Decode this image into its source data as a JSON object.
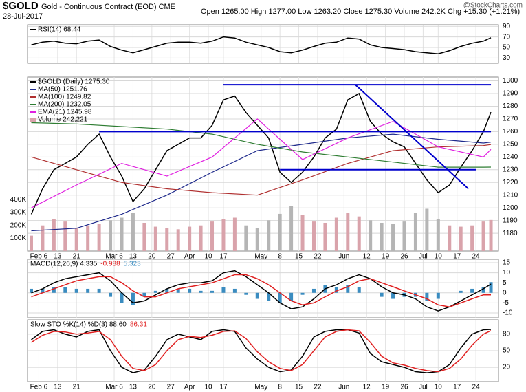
{
  "header": {
    "symbol": "$GOLD",
    "name": "Gold - Continuous Contract (EOD) CME",
    "date": "28-Jul-2017",
    "quote": "Open 1265.00   High 1277.00   Low 1263.20   Close 1275.30   Volume 242.2K   Chg +15.30 (+1.21%)",
    "watermark": "@StockCharts.com"
  },
  "chart_data": [
    {
      "type": "line",
      "legend_layout": "column",
      "x": [
        1,
        4,
        7,
        10,
        13,
        16,
        19,
        22,
        25,
        28,
        31,
        34,
        37,
        40,
        43,
        46,
        49,
        52,
        55,
        58,
        61,
        64,
        67,
        70,
        73,
        76,
        79,
        82,
        85,
        88,
        91,
        94,
        97,
        100,
        103,
        106,
        109,
        112,
        115,
        118,
        121,
        123
      ],
      "xlim": [
        0,
        125
      ],
      "ylim": [
        20,
        93
      ],
      "yticks": [
        90,
        70,
        50,
        30
      ],
      "series": [
        {
          "name": "RSI(14) 68.44",
          "color": "#000000",
          "values": [
            55,
            60,
            62,
            58,
            57,
            62,
            64,
            52,
            45,
            40,
            46,
            52,
            58,
            60,
            60,
            58,
            62,
            70,
            68,
            60,
            55,
            50,
            42,
            40,
            45,
            52,
            58,
            60,
            68,
            66,
            55,
            50,
            48,
            46,
            42,
            40,
            38,
            44,
            52,
            58,
            62,
            68.44
          ]
        }
      ]
    },
    {
      "type": "line",
      "legend_layout": "column",
      "x": [
        1,
        4,
        7,
        10,
        13,
        16,
        19,
        22,
        25,
        28,
        31,
        34,
        37,
        40,
        43,
        46,
        49,
        52,
        55,
        58,
        61,
        64,
        67,
        70,
        73,
        76,
        79,
        82,
        85,
        88,
        91,
        94,
        97,
        100,
        103,
        106,
        109,
        112,
        115,
        118,
        121,
        123
      ],
      "xlim": [
        0,
        125
      ],
      "ylim": [
        1166,
        1303
      ],
      "yticks": [
        1180,
        1190,
        1200,
        1210,
        1220,
        1230,
        1240,
        1250,
        1260,
        1270,
        1280,
        1290,
        1300
      ],
      "y2lim": [
        0,
        1357
      ],
      "y2ticks": [
        {
          "value": 100,
          "label": "100K"
        },
        {
          "value": 200,
          "label": "200K"
        },
        {
          "value": 300,
          "label": "300K"
        },
        {
          "value": 400,
          "label": "400K"
        }
      ],
      "xticks": [
        {
          "value": 3,
          "label": "Feb 6"
        },
        {
          "value": 8,
          "label": "13"
        },
        {
          "value": 13,
          "label": "21"
        },
        {
          "value": 23,
          "label": "Mar 6"
        },
        {
          "value": 28,
          "label": "13"
        },
        {
          "value": 33,
          "label": "20"
        },
        {
          "value": 38,
          "label": "27"
        },
        {
          "value": 43,
          "label": "Apr"
        },
        {
          "value": 48,
          "label": "10"
        },
        {
          "value": 52,
          "label": "17"
        },
        {
          "value": 62,
          "label": "May"
        },
        {
          "value": 67,
          "label": "8"
        },
        {
          "value": 72,
          "label": "15"
        },
        {
          "value": 77,
          "label": "22"
        },
        {
          "value": 84,
          "label": "Jun"
        },
        {
          "value": 90,
          "label": "12"
        },
        {
          "value": 95,
          "label": "19"
        },
        {
          "value": 100,
          "label": "26"
        },
        {
          "value": 105,
          "label": "Jul"
        },
        {
          "value": 109,
          "label": "10"
        },
        {
          "value": 114,
          "label": "17"
        },
        {
          "value": 119,
          "label": "24"
        }
      ],
      "trendline_color": "#0000cc",
      "trendlines": [
        {
          "x": [
            52,
            123
          ],
          "y": [
            1297,
            1297
          ]
        },
        {
          "x": [
            19,
            123
          ],
          "y": [
            1260,
            1260
          ]
        },
        {
          "x": [
            67,
            119
          ],
          "y": [
            1230,
            1230
          ]
        },
        {
          "x": [
            87,
            117
          ],
          "y": [
            1297,
            1215
          ]
        }
      ],
      "series": [
        {
          "name": "$GOLD (Daily) 1275.30",
          "color": "#000000",
          "values": [
            1195,
            1215,
            1230,
            1235,
            1240,
            1250,
            1258,
            1240,
            1225,
            1205,
            1215,
            1230,
            1245,
            1250,
            1255,
            1255,
            1265,
            1285,
            1288,
            1275,
            1265,
            1255,
            1228,
            1220,
            1228,
            1240,
            1255,
            1262,
            1285,
            1290,
            1268,
            1258,
            1252,
            1248,
            1235,
            1222,
            1212,
            1218,
            1232,
            1245,
            1260,
            1275.3
          ]
        },
        {
          "name": "MA(50) 1251.76",
          "color": "#1f2a8c",
          "x": [
            1,
            13,
            25,
            37,
            49,
            61,
            73,
            85,
            97,
            109,
            121,
            123
          ],
          "values": [
            1182,
            1184,
            1195,
            1210,
            1228,
            1245,
            1250,
            1255,
            1258,
            1254,
            1251,
            1251.76
          ]
        },
        {
          "name": "MA(100) 1249.82",
          "color": "#b03030",
          "x": [
            1,
            13,
            25,
            37,
            49,
            61,
            73,
            85,
            97,
            109,
            121,
            123
          ],
          "values": [
            1240,
            1230,
            1220,
            1215,
            1212,
            1210,
            1222,
            1235,
            1245,
            1248,
            1249,
            1249.82
          ]
        },
        {
          "name": "MA(200) 1232.05",
          "color": "#2e7d32",
          "x": [
            1,
            13,
            25,
            37,
            49,
            61,
            73,
            85,
            97,
            109,
            121,
            123
          ],
          "values": [
            1267,
            1266,
            1264,
            1262,
            1258,
            1250,
            1244,
            1240,
            1236,
            1232,
            1232,
            1232.05
          ]
        },
        {
          "name": "EMA(21) 1245.98",
          "color": "#e020e0",
          "x": [
            1,
            13,
            25,
            37,
            49,
            61,
            73,
            85,
            97,
            109,
            121,
            123
          ],
          "values": [
            1200,
            1218,
            1235,
            1225,
            1240,
            1270,
            1238,
            1255,
            1268,
            1248,
            1240,
            1245.98
          ]
        },
        {
          "name": "Volume 242,221",
          "type": "bar",
          "axis": "y2",
          "color": "#d9a3ab",
          "down_color": "#b5b5b5",
          "values": [
            120,
            200,
            250,
            230,
            180,
            200,
            210,
            240,
            260,
            300,
            220,
            190,
            180,
            170,
            190,
            200,
            230,
            250,
            260,
            200,
            180,
            240,
            290,
            350,
            280,
            230,
            220,
            260,
            300,
            270,
            240,
            220,
            210,
            230,
            300,
            330,
            250,
            200,
            190,
            200,
            230,
            242.221
          ]
        }
      ]
    },
    {
      "type": "line",
      "legend_layout": "row",
      "x": [
        1,
        4,
        7,
        10,
        13,
        16,
        19,
        22,
        25,
        28,
        31,
        34,
        37,
        40,
        43,
        46,
        49,
        52,
        55,
        58,
        61,
        64,
        67,
        70,
        73,
        76,
        79,
        82,
        85,
        88,
        91,
        94,
        97,
        100,
        103,
        106,
        109,
        112,
        115,
        118,
        121,
        123
      ],
      "xlim": [
        0,
        125
      ],
      "ylim": [
        -12.4,
        16.7
      ],
      "yticks": [
        15,
        10,
        5,
        0,
        -5,
        -10
      ],
      "series": [
        {
          "name": "5.323",
          "type": "bar",
          "color": "#3a8cc0",
          "values": [
            2,
            2,
            3,
            3,
            2,
            2,
            2,
            -2,
            -5,
            -6,
            -2,
            1,
            2,
            2,
            2,
            1,
            1,
            3,
            2,
            -1,
            -3,
            -4,
            -5,
            -4,
            -1,
            2,
            4,
            3,
            4,
            3,
            0,
            -2,
            -3,
            -2,
            -2,
            -4,
            -3,
            0,
            1,
            2,
            3,
            5.323
          ]
        },
        {
          "name": "MACD(12,26,9) 4.335",
          "color": "#000000",
          "values": [
            0,
            2,
            5,
            7,
            8,
            9,
            10,
            6,
            0,
            -5,
            -4,
            -1,
            2,
            4,
            5,
            5,
            6,
            10,
            11,
            8,
            4,
            0,
            -5,
            -8,
            -7,
            -3,
            2,
            4,
            7,
            9,
            7,
            3,
            0,
            -1,
            -3,
            -7,
            -9,
            -7,
            -4,
            -1,
            2,
            4.335
          ]
        },
        {
          "name": "-0.988",
          "color": "#e02020",
          "values": [
            -2,
            0,
            2,
            4,
            6,
            7,
            8,
            8,
            5,
            1,
            -2,
            -2,
            0,
            2,
            3,
            4,
            5,
            7,
            9,
            9,
            7,
            4,
            0,
            -4,
            -6,
            -5,
            -2,
            1,
            3,
            6,
            7,
            5,
            3,
            1,
            -1,
            -3,
            -6,
            -7,
            -5,
            -3,
            -1,
            -0.988
          ]
        }
      ]
    },
    {
      "type": "line",
      "legend_layout": "row",
      "x": [
        1,
        4,
        7,
        10,
        13,
        16,
        19,
        22,
        25,
        28,
        31,
        34,
        37,
        40,
        43,
        46,
        49,
        52,
        55,
        58,
        61,
        64,
        67,
        70,
        73,
        76,
        79,
        82,
        85,
        88,
        91,
        94,
        97,
        100,
        103,
        106,
        109,
        112,
        115,
        118,
        121,
        123
      ],
      "xlim": [
        0,
        125
      ],
      "ylim": [
        -6,
        106
      ],
      "yticks": [
        80,
        50,
        20
      ],
      "xticks": [
        {
          "value": 3,
          "label": "Feb 6"
        },
        {
          "value": 8,
          "label": "13"
        },
        {
          "value": 13,
          "label": "21"
        },
        {
          "value": 23,
          "label": "Mar 6"
        },
        {
          "value": 28,
          "label": "13"
        },
        {
          "value": 33,
          "label": "20"
        },
        {
          "value": 38,
          "label": "27"
        },
        {
          "value": 43,
          "label": "Apr"
        },
        {
          "value": 48,
          "label": "10"
        },
        {
          "value": 52,
          "label": "17"
        },
        {
          "value": 62,
          "label": "May"
        },
        {
          "value": 67,
          "label": "8"
        },
        {
          "value": 72,
          "label": "15"
        },
        {
          "value": 77,
          "label": "22"
        },
        {
          "value": 84,
          "label": "Jun"
        },
        {
          "value": 90,
          "label": "12"
        },
        {
          "value": 95,
          "label": "19"
        },
        {
          "value": 100,
          "label": "26"
        },
        {
          "value": 105,
          "label": "Jul"
        },
        {
          "value": 109,
          "label": "10"
        },
        {
          "value": 114,
          "label": "17"
        },
        {
          "value": 119,
          "label": "24"
        }
      ],
      "series": [
        {
          "name": "Slow STO %K(14) %D(3) 88.60",
          "color": "#000000",
          "values": [
            70,
            85,
            88,
            80,
            75,
            85,
            88,
            50,
            20,
            10,
            15,
            40,
            70,
            80,
            75,
            70,
            85,
            88,
            85,
            55,
            35,
            20,
            12,
            15,
            40,
            75,
            85,
            88,
            88,
            82,
            45,
            30,
            25,
            20,
            12,
            10,
            12,
            25,
            55,
            80,
            88,
            88.6
          ]
        },
        {
          "name": "86.31",
          "color": "#e02020",
          "values": [
            65,
            78,
            85,
            84,
            80,
            82,
            85,
            70,
            40,
            18,
            14,
            25,
            50,
            70,
            76,
            74,
            78,
            85,
            86,
            72,
            48,
            30,
            18,
            14,
            25,
            50,
            75,
            85,
            88,
            86,
            65,
            40,
            28,
            24,
            18,
            14,
            12,
            18,
            35,
            60,
            80,
            86.31
          ]
        }
      ]
    }
  ]
}
